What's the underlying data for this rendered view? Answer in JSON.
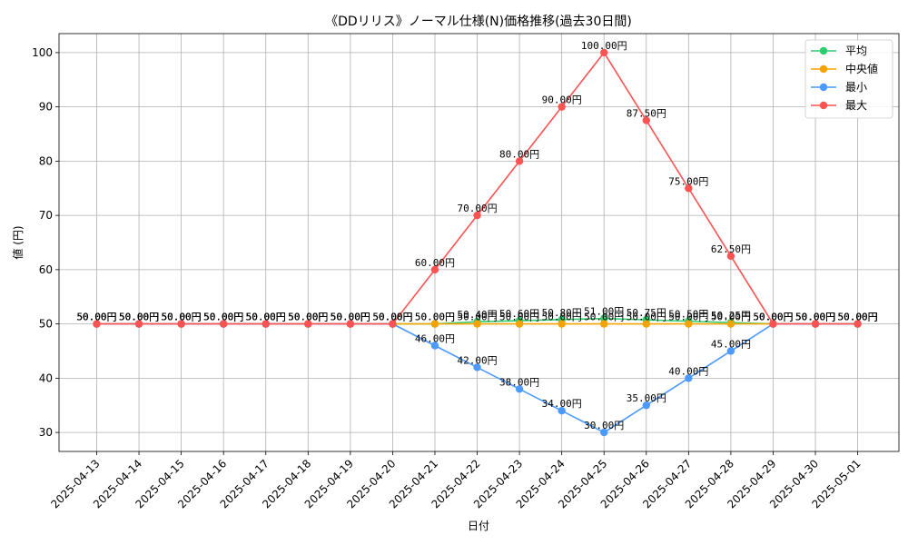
{
  "chart_data": {
    "type": "line",
    "title": "《DDリリス》ノーマル仕様(N)価格推移(過去30日間)",
    "xlabel": "日付",
    "ylabel": "値 (円)",
    "ylim": [
      26.5,
      103.5
    ],
    "yticks": [
      30,
      40,
      50,
      60,
      70,
      80,
      90,
      100
    ],
    "grid": true,
    "legend_position": "top-right",
    "label_suffix": "円",
    "categories": [
      "2025-04-13",
      "2025-04-14",
      "2025-04-15",
      "2025-04-16",
      "2025-04-17",
      "2025-04-18",
      "2025-04-19",
      "2025-04-20",
      "2025-04-21",
      "2025-04-22",
      "2025-04-23",
      "2025-04-24",
      "2025-04-25",
      "2025-04-26",
      "2025-04-27",
      "2025-04-28",
      "2025-04-29",
      "2025-04-30",
      "2025-05-01"
    ],
    "series": [
      {
        "name": "平均",
        "color": "#2ecc71",
        "values": [
          50,
          50,
          50,
          50,
          50,
          50,
          50,
          50,
          50,
          50.4,
          50.6,
          50.8,
          51,
          50.75,
          50.5,
          50.25,
          50,
          50,
          50
        ]
      },
      {
        "name": "中央値",
        "color": "#f5a300",
        "values": [
          50,
          50,
          50,
          50,
          50,
          50,
          50,
          50,
          50,
          50,
          50,
          50,
          50,
          50,
          50,
          50,
          50,
          50,
          50
        ]
      },
      {
        "name": "最小",
        "color": "#4c9aff",
        "values": [
          50,
          50,
          50,
          50,
          50,
          50,
          50,
          50,
          46,
          42,
          38,
          34,
          30,
          35,
          40,
          45,
          50,
          50,
          50
        ]
      },
      {
        "name": "最大",
        "color": "#ff5252",
        "values": [
          50,
          50,
          50,
          50,
          50,
          50,
          50,
          50,
          60,
          70,
          80,
          90,
          100,
          87.5,
          75,
          62.5,
          50,
          50,
          50
        ]
      }
    ]
  }
}
